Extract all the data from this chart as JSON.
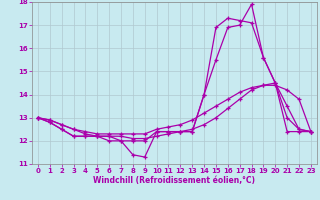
{
  "title": "",
  "xlabel": "Windchill (Refroidissement éolien,°C)",
  "ylabel": "",
  "bg_color": "#c8eaf0",
  "plot_bg_color": "#c8eaf0",
  "outer_bg_color": "#c8eaf0",
  "grid_color": "#b0c8d0",
  "line_color": "#aa00aa",
  "xlim": [
    -0.5,
    23.5
  ],
  "ylim": [
    11,
    18
  ],
  "yticks": [
    11,
    12,
    13,
    14,
    15,
    16,
    17,
    18
  ],
  "xticks": [
    0,
    1,
    2,
    3,
    4,
    5,
    6,
    7,
    8,
    9,
    10,
    11,
    12,
    13,
    14,
    15,
    16,
    17,
    18,
    19,
    20,
    21,
    22,
    23
  ],
  "tick_fontsize": 5.0,
  "xlabel_fontsize": 5.5,
  "lines": [
    {
      "x": [
        0,
        1,
        2,
        3,
        4,
        5,
        6,
        7,
        8,
        9,
        10,
        11,
        12,
        13,
        14,
        15,
        16,
        17,
        18,
        19,
        20,
        21,
        22,
        23
      ],
      "y": [
        13.0,
        12.8,
        12.5,
        12.2,
        12.2,
        12.2,
        12.2,
        12.0,
        11.4,
        11.3,
        12.4,
        12.4,
        12.4,
        12.4,
        14.0,
        15.5,
        16.9,
        17.0,
        17.9,
        15.6,
        14.5,
        13.0,
        12.5,
        12.4
      ]
    },
    {
      "x": [
        0,
        1,
        2,
        3,
        4,
        5,
        6,
        7,
        8,
        9,
        10,
        11,
        12,
        13,
        14,
        15,
        16,
        17,
        18,
        19,
        20,
        21,
        22,
        23
      ],
      "y": [
        13.0,
        12.8,
        12.5,
        12.2,
        12.2,
        12.2,
        12.0,
        12.0,
        12.0,
        12.0,
        12.4,
        12.4,
        12.4,
        12.4,
        14.0,
        16.9,
        17.3,
        17.2,
        17.1,
        15.6,
        14.5,
        12.4,
        12.4,
        12.4
      ]
    },
    {
      "x": [
        0,
        1,
        2,
        3,
        4,
        5,
        6,
        7,
        8,
        9,
        10,
        11,
        12,
        13,
        14,
        15,
        16,
        17,
        18,
        19,
        20,
        21,
        22,
        23
      ],
      "y": [
        13.0,
        12.9,
        12.7,
        12.5,
        12.4,
        12.3,
        12.3,
        12.3,
        12.3,
        12.3,
        12.5,
        12.6,
        12.7,
        12.9,
        13.2,
        13.5,
        13.8,
        14.1,
        14.3,
        14.4,
        14.4,
        14.2,
        13.8,
        12.4
      ]
    },
    {
      "x": [
        0,
        1,
        2,
        3,
        4,
        5,
        6,
        7,
        8,
        9,
        10,
        11,
        12,
        13,
        14,
        15,
        16,
        17,
        18,
        19,
        20,
        21,
        22,
        23
      ],
      "y": [
        13.0,
        12.9,
        12.7,
        12.5,
        12.3,
        12.2,
        12.2,
        12.2,
        12.1,
        12.1,
        12.2,
        12.3,
        12.4,
        12.5,
        12.7,
        13.0,
        13.4,
        13.8,
        14.2,
        14.4,
        14.5,
        13.5,
        12.5,
        12.4
      ]
    }
  ]
}
